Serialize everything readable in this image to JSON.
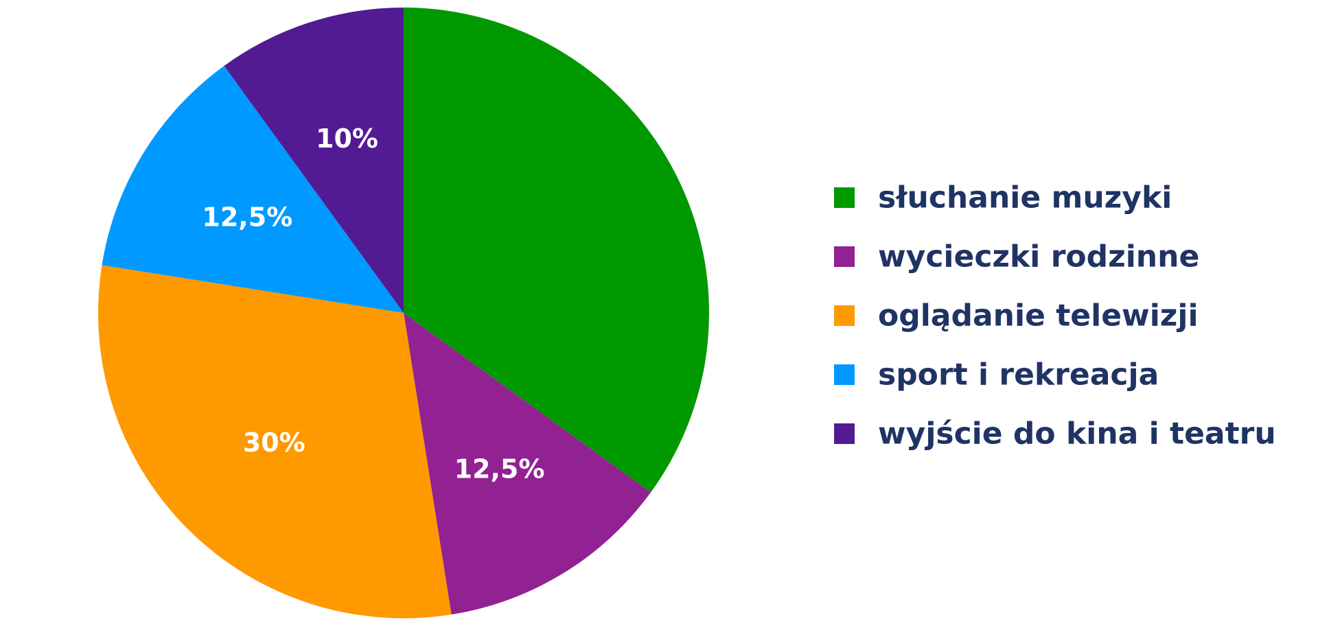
{
  "chart_data": {
    "type": "pie",
    "start": "12 o'clock",
    "direction": "clockwise",
    "legend_position": "right",
    "slices": [
      {
        "name": "słuchanie muzyki",
        "value": 35,
        "label": "",
        "color": "#009900"
      },
      {
        "name": "wycieczki rodzinne",
        "value": 12.5,
        "label": "12,5%",
        "color": "#922192"
      },
      {
        "name": "oglądanie telewizji",
        "value": 30,
        "label": "30%",
        "color": "#ff9900"
      },
      {
        "name": "sport i rekreacja",
        "value": 12.5,
        "label": "12,5%",
        "color": "#0099ff"
      },
      {
        "name": "wyjście do kina i teatru",
        "value": 10,
        "label": "10%",
        "color": "#521b93"
      }
    ]
  }
}
